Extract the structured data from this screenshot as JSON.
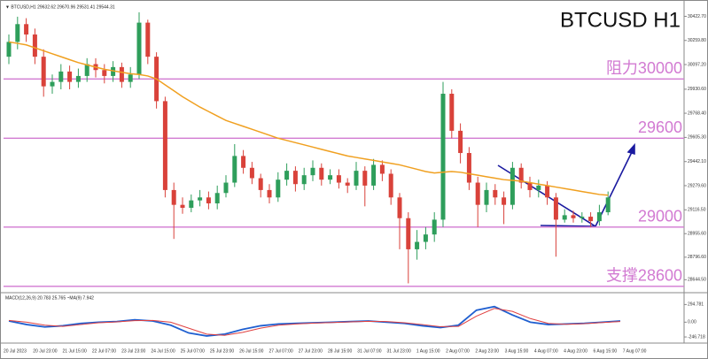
{
  "chart_data": {
    "type": "candlestick",
    "title": "BTCUSD H1",
    "header": "▼ BTCUSD,H1 29632.62 29670.96 29531.41 29544.31",
    "up_color": "#2e9e5b",
    "down_color": "#d9423a",
    "ema_color": "#f0a020",
    "level_color": "#d27ad2",
    "open": [
      30150,
      30250,
      30370,
      30300,
      30150,
      29950,
      29980,
      30050,
      29980,
      30020,
      30100,
      30060,
      30020,
      30080,
      29980,
      30030,
      30380,
      30150,
      29850,
      29250,
      29150,
      29130,
      29180,
      29200,
      29160,
      29230,
      29300,
      29480,
      29400,
      29330,
      29250,
      29200,
      29320,
      29380,
      29290,
      29350,
      29400,
      29320,
      29350,
      29300,
      29280,
      29380,
      29280,
      29420,
      29360,
      29200,
      29060,
      28850,
      28900,
      28950,
      29050,
      29900,
      29650,
      29500,
      29300,
      29150,
      29250,
      29200,
      29150,
      29400,
      29300,
      29250,
      29280,
      29200,
      29050,
      29080,
      29060,
      29070,
      29040,
      29100
    ],
    "high": [
      30300,
      30420,
      30410,
      30340,
      30200,
      30030,
      30100,
      30090,
      30070,
      30140,
      30140,
      30100,
      30120,
      30110,
      30080,
      30450,
      30400,
      30180,
      29880,
      29300,
      29200,
      29220,
      29250,
      29240,
      29280,
      29350,
      29560,
      29520,
      29440,
      29360,
      29290,
      29370,
      29430,
      29410,
      29400,
      29450,
      29430,
      29390,
      29390,
      29330,
      29440,
      29410,
      29460,
      29450,
      29390,
      29230,
      29100,
      28980,
      29000,
      29100,
      29980,
      29930,
      29700,
      29540,
      29340,
      29300,
      29290,
      29240,
      29440,
      29430,
      29340,
      29320,
      29310,
      29230,
      29120,
      29110,
      29100,
      29100,
      29150,
      29240
    ],
    "low": [
      30100,
      30200,
      30250,
      30100,
      29880,
      29900,
      29930,
      29930,
      29940,
      29980,
      30010,
      29970,
      29980,
      29940,
      29940,
      30000,
      30100,
      29800,
      29200,
      28920,
      29090,
      29100,
      29140,
      29120,
      29120,
      29200,
      29270,
      29360,
      29290,
      29200,
      29160,
      29170,
      29280,
      29240,
      29250,
      29310,
      29280,
      29290,
      29260,
      29230,
      29250,
      29140,
      29250,
      29310,
      29150,
      28850,
      28620,
      28780,
      28850,
      28900,
      29000,
      29600,
      29430,
      29250,
      29000,
      29100,
      29150,
      29020,
      29120,
      29260,
      29200,
      29200,
      29150,
      28800,
      29030,
      29030,
      29030,
      29000,
      29010,
      29080
    ],
    "close": [
      30250,
      30370,
      30300,
      30150,
      29950,
      29980,
      30050,
      29980,
      30020,
      30100,
      30060,
      30020,
      30080,
      29980,
      30030,
      30380,
      30150,
      29850,
      29250,
      29150,
      29130,
      29180,
      29200,
      29160,
      29230,
      29300,
      29480,
      29400,
      29330,
      29250,
      29200,
      29320,
      29380,
      29290,
      29350,
      29400,
      29320,
      29350,
      29300,
      29280,
      29380,
      29280,
      29420,
      29360,
      29200,
      29060,
      28850,
      28900,
      28950,
      29050,
      29900,
      29650,
      29500,
      29300,
      29150,
      29250,
      29200,
      29150,
      29400,
      29300,
      29250,
      29280,
      29200,
      29050,
      29080,
      29060,
      29070,
      29040,
      29100,
      29200
    ],
    "ema": [
      30250,
      30240,
      30230,
      30210,
      30190,
      30170,
      30150,
      30130,
      30110,
      30095,
      30080,
      30065,
      30055,
      30045,
      30035,
      30030,
      30020,
      30000,
      29960,
      29920,
      29880,
      29845,
      29810,
      29780,
      29750,
      29720,
      29700,
      29680,
      29660,
      29640,
      29620,
      29600,
      29585,
      29570,
      29555,
      29540,
      29525,
      29510,
      29495,
      29480,
      29470,
      29460,
      29450,
      29440,
      29430,
      29420,
      29405,
      29390,
      29375,
      29365,
      29370,
      29375,
      29370,
      29360,
      29350,
      29340,
      29330,
      29320,
      29315,
      29310,
      29300,
      29290,
      29280,
      29270,
      29260,
      29250,
      29240,
      29230,
      29220,
      29215
    ],
    "ylim": [
      28563,
      30509
    ],
    "yticks": [
      {
        "value": 30422.7,
        "label": "30422.70"
      },
      {
        "value": 30259.8,
        "label": "30259.80"
      },
      {
        "value": 30097.2,
        "label": "30097.20"
      },
      {
        "value": 29930.6,
        "label": "29930.60"
      },
      {
        "value": 29768.4,
        "label": "29768.40"
      },
      {
        "value": 29605.3,
        "label": "29605.30"
      },
      {
        "value": 29442.1,
        "label": "29442.10"
      },
      {
        "value": 29279.6,
        "label": "29279.60"
      },
      {
        "value": 29116.5,
        "label": "29116.50"
      },
      {
        "value": 28955.6,
        "label": "28955.60"
      },
      {
        "value": 28796.6,
        "label": "28796.60"
      },
      {
        "value": 28644.5,
        "label": "28644.50"
      }
    ],
    "levels": [
      {
        "value": 30000,
        "label": "阻力30000"
      },
      {
        "value": 29600,
        "label": "29600"
      },
      {
        "value": 29000,
        "label": "29000"
      },
      {
        "value": 28600,
        "label": "支撑28600"
      }
    ],
    "x_labels": [
      "20 Jul 2023",
      "20 Jul 23:00",
      "21 Jul 15:00",
      "22 Jul 07:00",
      "23 Jul 23:00",
      "24 Jul 15:00",
      "25 Jul 07:00",
      "25 Jul 23:00",
      "26 Jul 15:00",
      "27 Jul 07:00",
      "27 Jul 23:00",
      "28 Jul 15:00",
      "31 Jul 07:00",
      "31 Jul 23:00",
      "1 Aug 15:00",
      "2 Aug 07:00",
      "2 Aug 23:00",
      "3 Aug 15:00",
      "4 Aug 07:00",
      "4 Aug 23:00",
      "6 Aug 15:00",
      "7 Aug 07:00"
    ],
    "macd": {
      "header": "MACD(12,26,9) 20.783 25.765 ~MA(9) 7.942",
      "ylim": [
        -290,
        330
      ],
      "yticks": [
        294.781,
        {
          "value": 0,
          "label": "0.00"
        },
        -246.718
      ],
      "series": [
        {
          "name": "MACD",
          "color": "#1f5fd0",
          "values": [
            20,
            -40,
            -80,
            -60,
            -20,
            0,
            10,
            40,
            20,
            -50,
            -180,
            -230,
            -200,
            -120,
            -60,
            -30,
            -20,
            -10,
            0,
            10,
            20,
            0,
            -20,
            -60,
            -90,
            -50,
            200,
            260,
            120,
            0,
            -40,
            -30,
            -20,
            0,
            20
          ]
        },
        {
          "name": "MA",
          "color": "#e04040",
          "values": [
            30,
            0,
            -50,
            -70,
            -40,
            -10,
            5,
            25,
            30,
            0,
            -100,
            -200,
            -220,
            -170,
            -100,
            -50,
            -30,
            -15,
            -5,
            5,
            15,
            10,
            -10,
            -40,
            -75,
            -70,
            100,
            230,
            180,
            60,
            -20,
            -35,
            -25,
            -5,
            10
          ]
        }
      ]
    }
  }
}
